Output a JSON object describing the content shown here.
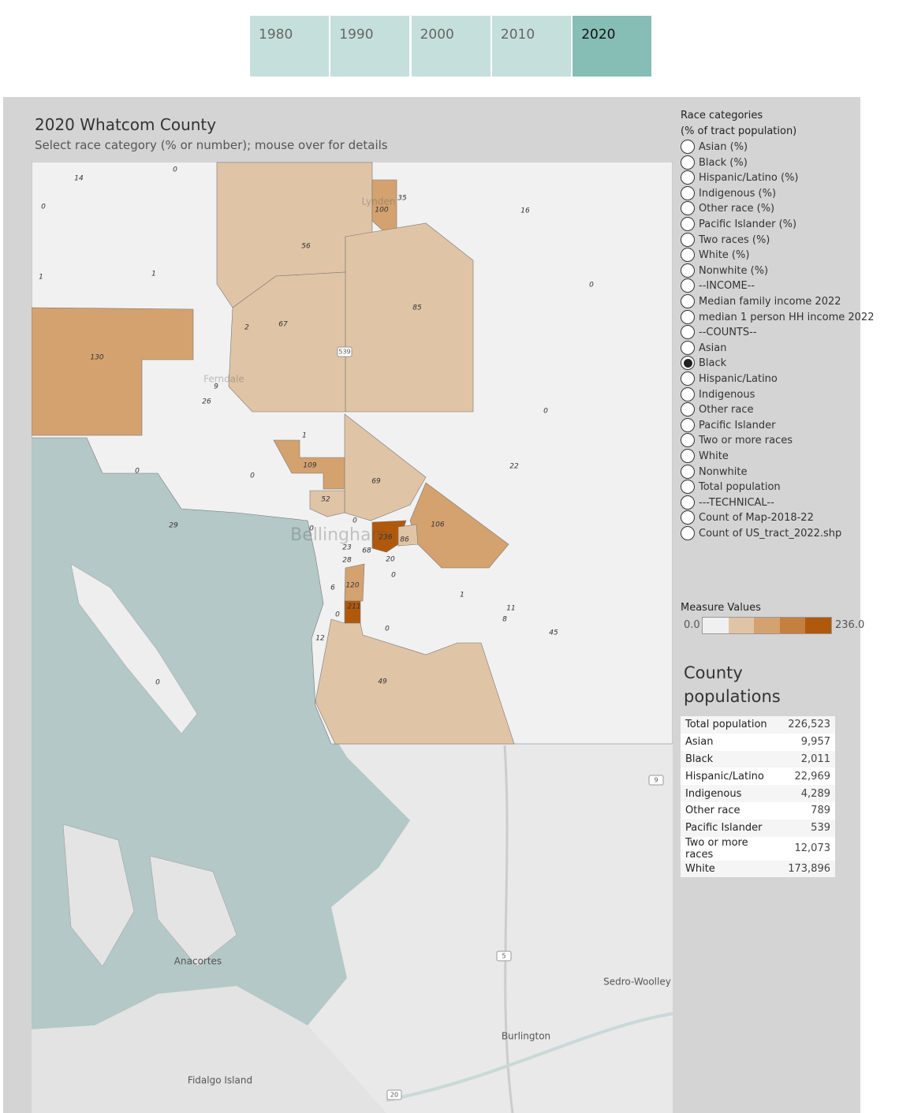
{
  "tabs": {
    "items": [
      "1980",
      "1990",
      "2000",
      "2010",
      "2020"
    ],
    "selected": 4
  },
  "header": {
    "title": "2020 Whatcom County",
    "subtitle": "Select race category (% or number); mouse over for details"
  },
  "map": {
    "tracts": [
      14,
      0,
      0,
      56,
      100,
      35,
      16,
      1,
      1,
      0,
      85,
      67,
      2,
      130,
      9,
      26,
      0,
      1,
      109,
      69,
      22,
      0,
      0,
      52,
      106,
      29,
      0,
      0,
      236,
      86,
      68,
      23,
      28,
      20,
      0,
      6,
      120,
      1,
      11,
      8,
      45,
      211,
      0,
      0,
      12,
      49,
      0
    ],
    "places": [
      "Lynden",
      "Ferndale",
      "Bellingham",
      "Anacortes",
      "Sedro-Woolley",
      "Burlington",
      "Fidalgo Island"
    ],
    "shields": [
      "539",
      "9",
      "5",
      "20"
    ]
  },
  "filter": {
    "title": "Race categories",
    "subtitle": "(% of tract population)",
    "options": [
      "Asian (%)",
      "Black (%)",
      "Hispanic/Latino (%)",
      "Indigenous (%)",
      "Other race (%)",
      "Pacific Islander (%)",
      "Two races (%)",
      "White (%)",
      "Nonwhite (%)",
      "--INCOME--",
      "Median family income 2022",
      "median 1 person HH income 2022",
      "--COUNTS--",
      "Asian",
      "Black",
      "Hispanic/Latino",
      "Indigenous",
      "Other race",
      "Pacific Islander",
      "Two or more races",
      "White",
      "Nonwhite",
      "Total population",
      "---TECHNICAL--",
      "Count of Map-2018-22",
      "Count of US_tract_2022.shp"
    ],
    "selected": 14
  },
  "legend": {
    "title": "Measure Values",
    "range": [
      {
        "value": 0,
        "label": "0.0"
      },
      {
        "value": 236,
        "label": "236.0"
      }
    ],
    "colors": [
      "#f0f0f0",
      "#e0c4a6",
      "#d4a26f",
      "#c4803f",
      "#b0590c"
    ]
  },
  "county_populations": {
    "title": "County populations",
    "rows": [
      [
        "Total population",
        "226,523"
      ],
      [
        "Asian",
        "9,957"
      ],
      [
        "Black",
        "2,011"
      ],
      [
        "Hispanic/Latino",
        "22,969"
      ],
      [
        "Indigenous",
        "4,289"
      ],
      [
        "Other race",
        "789"
      ],
      [
        "Pacific Islander",
        "539"
      ],
      [
        "Two or more races",
        "12,073"
      ],
      [
        "White",
        "173,896"
      ]
    ]
  }
}
